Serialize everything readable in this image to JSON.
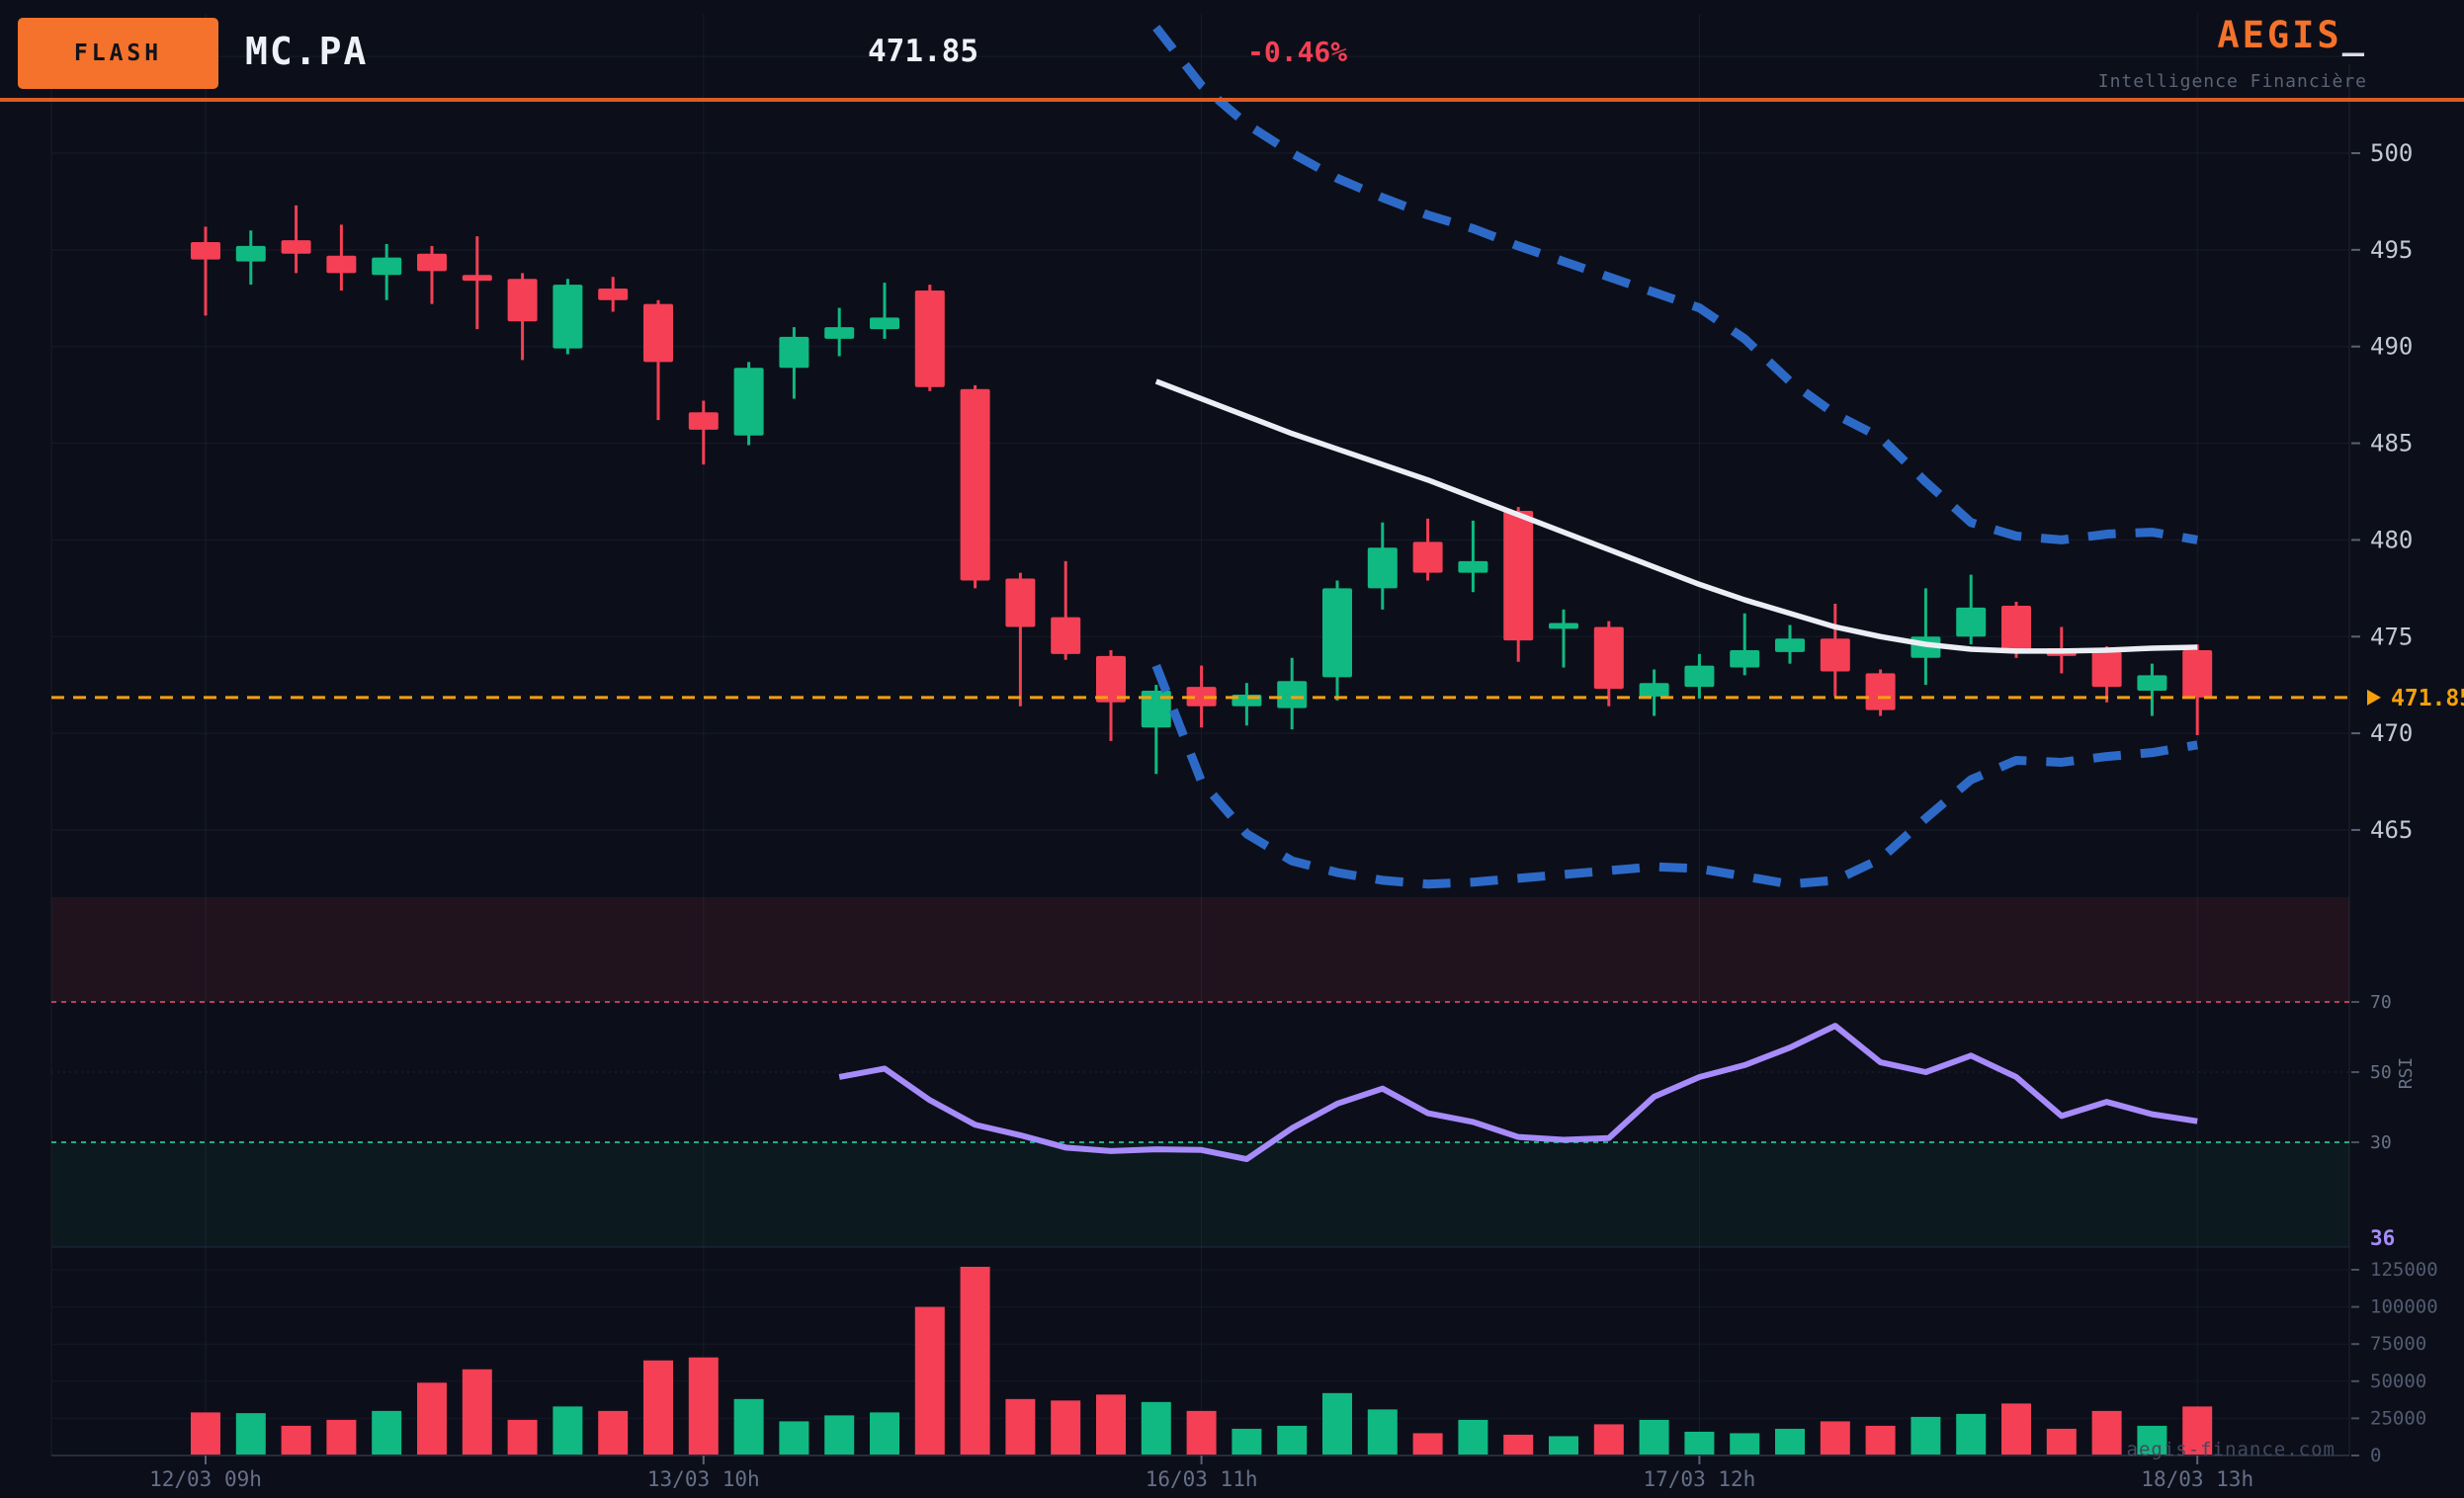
{
  "header": {
    "badge": "FLASH",
    "ticker": "MC.PA",
    "price": "471.85",
    "change": "-0.46%",
    "brand": "AEGIS",
    "brand_cursor": "_",
    "tagline": "Intelligence Financière"
  },
  "watermark": "aegis-finance.com",
  "colors": {
    "background": "#0c0f19",
    "grid": "#171c2b",
    "candle_up": "#10b981",
    "candle_down": "#f43f55",
    "bollinger": "#2d6ac8",
    "sma": "#eceef5",
    "rsi_line": "#a78bfa",
    "current_price": "#f5a00c",
    "accent_orange": "#f4722b",
    "overbought_fill": "rgba(244,63,94,0.09)",
    "oversold_fill": "rgba(16,185,129,0.06)",
    "overbought_line": "#b8405c",
    "oversold_line": "#1fae85",
    "price_label_text": "#c3c8d4",
    "minor_label_text": "#667089",
    "volume_label_text": "#535b73"
  },
  "axes": {
    "price_ticks": [
      500,
      495,
      490,
      485,
      480,
      475,
      470,
      465
    ],
    "price_grid_extra": [
      505
    ],
    "current_price_label": "471.85",
    "rsi_ticks": [
      70,
      50,
      30
    ],
    "rsi_axis_label": "RSI",
    "rsi_current_label": "36",
    "volume_ticks": [
      125000,
      100000,
      75000,
      50000,
      25000,
      0
    ],
    "x_ticks": [
      {
        "label": "12/03 09h",
        "i": 0
      },
      {
        "label": "13/03 10h",
        "i": 11
      },
      {
        "label": "16/03 11h",
        "i": 22
      },
      {
        "label": "17/03 12h",
        "i": 33
      },
      {
        "label": "18/03 13h",
        "i": 44
      }
    ]
  },
  "chart_data": {
    "type": "candlestick",
    "symbol": "MC.PA",
    "last_price": 471.85,
    "change_pct": -0.46,
    "price_axis_range": [
      462,
      506.5
    ],
    "volume_axis_max": 125000,
    "rsi_levels": {
      "overbought": 70,
      "midline": 50,
      "oversold": 30
    },
    "candles_format": [
      "open",
      "high",
      "low",
      "close",
      "volume"
    ],
    "candles": [
      [
        495.4,
        496.2,
        491.6,
        494.5,
        29000
      ],
      [
        494.4,
        496.0,
        493.2,
        495.2,
        28500
      ],
      [
        495.5,
        497.3,
        493.8,
        494.8,
        20000
      ],
      [
        494.7,
        496.3,
        492.9,
        493.8,
        24000
      ],
      [
        493.7,
        495.3,
        492.4,
        494.6,
        30000
      ],
      [
        494.8,
        495.2,
        492.2,
        493.9,
        49000
      ],
      [
        493.7,
        495.7,
        490.9,
        493.4,
        58000
      ],
      [
        493.5,
        493.8,
        489.3,
        491.3,
        24000
      ],
      [
        489.9,
        493.5,
        489.6,
        493.2,
        33000
      ],
      [
        493.0,
        493.6,
        491.8,
        492.4,
        30000
      ],
      [
        492.2,
        492.4,
        486.2,
        489.2,
        64000
      ],
      [
        486.6,
        487.2,
        483.9,
        485.7,
        66000
      ],
      [
        485.4,
        489.2,
        484.9,
        488.9,
        38000
      ],
      [
        488.9,
        491.0,
        487.3,
        490.5,
        23000
      ],
      [
        490.4,
        492.0,
        489.5,
        491.0,
        27000
      ],
      [
        490.9,
        493.3,
        490.4,
        491.5,
        29000
      ],
      [
        492.9,
        493.2,
        487.7,
        487.9,
        100000
      ],
      [
        487.8,
        488.0,
        477.5,
        477.9,
        127000
      ],
      [
        478.0,
        478.3,
        471.4,
        475.5,
        38000
      ],
      [
        476.0,
        478.9,
        473.8,
        474.1,
        37000
      ],
      [
        474.0,
        474.3,
        469.6,
        471.6,
        41000
      ],
      [
        470.3,
        472.5,
        467.9,
        472.2,
        36000
      ],
      [
        472.4,
        473.5,
        470.3,
        471.4,
        30000
      ],
      [
        471.4,
        472.6,
        470.4,
        472.0,
        18000
      ],
      [
        471.3,
        473.9,
        470.2,
        472.7,
        20000
      ],
      [
        472.9,
        477.9,
        471.7,
        477.5,
        42000
      ],
      [
        477.5,
        480.9,
        476.4,
        479.6,
        31000
      ],
      [
        479.9,
        481.1,
        477.9,
        478.3,
        15000
      ],
      [
        478.3,
        481.0,
        477.3,
        478.9,
        24000
      ],
      [
        481.5,
        481.7,
        473.7,
        474.8,
        14000
      ],
      [
        475.4,
        476.4,
        473.4,
        475.7,
        13000
      ],
      [
        475.5,
        475.8,
        471.4,
        472.3,
        21000
      ],
      [
        471.9,
        473.3,
        470.9,
        472.6,
        24000
      ],
      [
        472.4,
        474.1,
        471.8,
        473.5,
        16000
      ],
      [
        473.4,
        476.2,
        473.0,
        474.3,
        15000
      ],
      [
        474.2,
        475.6,
        473.6,
        474.9,
        18000
      ],
      [
        474.9,
        476.7,
        471.9,
        473.2,
        23000
      ],
      [
        473.1,
        473.3,
        470.9,
        471.2,
        20000
      ],
      [
        473.9,
        477.5,
        472.5,
        475.0,
        26000
      ],
      [
        475.0,
        478.2,
        474.6,
        476.5,
        28000
      ],
      [
        476.6,
        476.8,
        473.9,
        474.3,
        35000
      ],
      [
        474.4,
        475.5,
        473.1,
        474.0,
        18000
      ],
      [
        474.2,
        474.5,
        471.6,
        472.4,
        30000
      ],
      [
        472.2,
        473.6,
        470.9,
        473.0,
        20000
      ],
      [
        474.3,
        474.6,
        469.9,
        471.85,
        33000
      ]
    ],
    "overlays": {
      "sma": {
        "name": "moving-average",
        "start_index": 21,
        "values": [
          488.2,
          487.3,
          486.4,
          485.5,
          484.7,
          483.9,
          483.1,
          482.2,
          481.3,
          480.4,
          479.5,
          478.6,
          477.7,
          476.9,
          476.2,
          475.5,
          475.0,
          474.6,
          474.35,
          474.25,
          474.25,
          474.3,
          474.4,
          474.45
        ]
      },
      "bollinger_upper": {
        "start_index": 21,
        "values": [
          506.5,
          503.5,
          501.5,
          500.0,
          498.7,
          497.7,
          496.8,
          496.1,
          495.2,
          494.4,
          493.6,
          492.8,
          492.0,
          490.4,
          488.2,
          486.5,
          485.3,
          483.0,
          480.9,
          480.2,
          480.0,
          480.3,
          480.4,
          480.0
        ]
      },
      "bollinger_lower": {
        "start_index": 21,
        "values": [
          473.5,
          467.5,
          464.8,
          463.4,
          462.8,
          462.4,
          462.2,
          462.3,
          462.5,
          462.7,
          462.9,
          463.1,
          463.0,
          462.6,
          462.2,
          462.4,
          463.5,
          465.6,
          467.6,
          468.6,
          468.5,
          468.8,
          469.0,
          469.4
        ]
      },
      "current_price_line": 471.85
    },
    "rsi": {
      "start_index": 14,
      "current": 36,
      "values": [
        48.6,
        51,
        42,
        35,
        32,
        28.5,
        27.5,
        28,
        27.8,
        25.2,
        34,
        41,
        45.3,
        38.3,
        35.8,
        31.5,
        30.7,
        31.2,
        43,
        48.6,
        52,
        57,
        63.2,
        52.8,
        50,
        54.7,
        48.6,
        37.5,
        41.5,
        38,
        36
      ]
    }
  }
}
